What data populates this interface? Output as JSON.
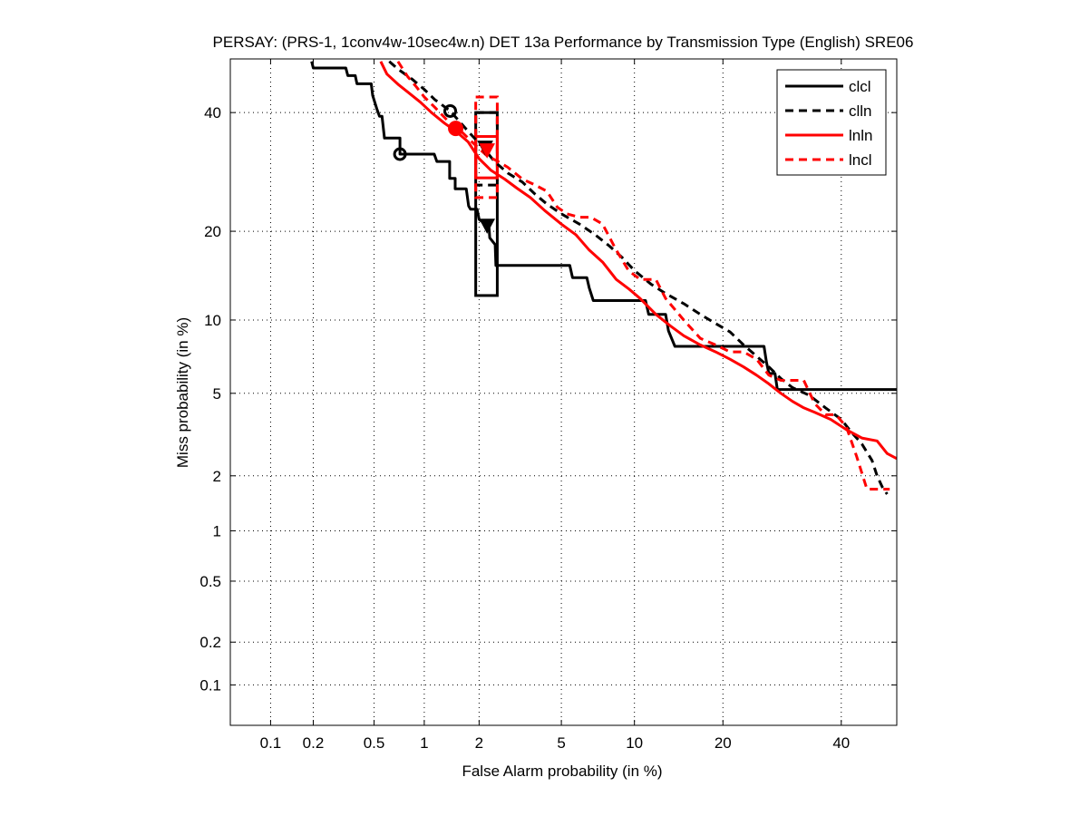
{
  "chart_data": {
    "type": "line",
    "title": "PERSAY: (PRS-1, 1conv4w-10sec4w.n) DET 13a Performance by Transmission Type (English) SRE06",
    "xlabel": "False Alarm probability (in %)",
    "ylabel": "Miss probability (in %)",
    "xscale": "probit",
    "yscale": "probit",
    "xlim": [
      0.05,
      50.9
    ],
    "ylim": [
      0.05,
      50.5
    ],
    "grid": true,
    "legend_position": "top-right",
    "xticks": [
      0.1,
      0.2,
      0.5,
      1,
      2,
      5,
      10,
      20,
      40
    ],
    "xtick_labels": [
      "0.1",
      "0.2",
      "0.5",
      "1",
      "2",
      "5",
      "10",
      "20",
      "40"
    ],
    "yticks": [
      0.1,
      0.2,
      0.5,
      1,
      2,
      5,
      10,
      20,
      40
    ],
    "ytick_labels": [
      "0.1",
      "0.2",
      "0.5",
      "1",
      "2",
      "5",
      "10",
      "20",
      "40"
    ],
    "series": [
      {
        "name": "clcl",
        "color": "#000000",
        "dash": "solid",
        "x": [
          0.195,
          0.2,
          0.33,
          0.34,
          0.38,
          0.39,
          0.48,
          0.49,
          0.52,
          0.54,
          0.56,
          0.58,
          0.72,
          0.72,
          1.14,
          1.18,
          1.39,
          1.39,
          1.49,
          1.49,
          1.71,
          1.76,
          1.8,
          1.95,
          2.0,
          2.25,
          2.27,
          2.42,
          2.44,
          5.45,
          5.6,
          6.45,
          6.6,
          6.86,
          11.0,
          11.3,
          13.0,
          13.3,
          14.0,
          26.2,
          26.6,
          27.0,
          28.0,
          28.4,
          50.9
        ],
        "y": [
          50,
          48.7,
          48.7,
          47.2,
          47.2,
          45.6,
          45.6,
          43.3,
          40.7,
          39.3,
          39.3,
          35.2,
          35.2,
          32.3,
          32.3,
          31.0,
          31.0,
          28.1,
          28.1,
          26.4,
          26.4,
          23.7,
          23.2,
          23.2,
          21.7,
          20.6,
          19.1,
          18.2,
          15.6,
          15.6,
          14.2,
          14.2,
          13.1,
          11.8,
          11.8,
          10.5,
          10.5,
          9.1,
          7.9,
          7.9,
          6.8,
          6.1,
          6.1,
          5.2,
          5.2
        ]
      },
      {
        "name": "clln",
        "color": "#000000",
        "dash": "dashed",
        "x": [
          0.62,
          0.7,
          0.85,
          1.0,
          1.15,
          1.4,
          1.6,
          1.8,
          2.1,
          2.4,
          2.8,
          3.3,
          3.8,
          4.3,
          5.0,
          6.0,
          7.0,
          8.0,
          9.0,
          10.0,
          11.5,
          13.0,
          15.0,
          17.0,
          19.0,
          21.0,
          23.0,
          25.0,
          27.0,
          29.0,
          31.0,
          34.0,
          37.0,
          40.0,
          42.0,
          44.0,
          46.0,
          47.0,
          48.0,
          49.0
        ],
        "y": [
          50,
          48.5,
          46.5,
          44.5,
          42.5,
          40.3,
          38.0,
          36.0,
          33.5,
          31.0,
          29.0,
          27.5,
          25.5,
          24.0,
          22.5,
          21.0,
          19.5,
          18.0,
          16.5,
          15.0,
          13.5,
          12.5,
          11.5,
          10.5,
          9.7,
          9.0,
          8.0,
          7.2,
          6.5,
          5.8,
          5.3,
          4.9,
          4.3,
          3.8,
          3.3,
          2.9,
          2.4,
          2.0,
          1.75,
          1.6
        ]
      },
      {
        "name": "lnln",
        "color": "#ff0000",
        "dash": "solid",
        "x": [
          0.55,
          0.6,
          0.7,
          0.8,
          0.95,
          1.1,
          1.3,
          1.5,
          1.75,
          2.0,
          2.3,
          2.7,
          3.1,
          3.6,
          4.2,
          5.0,
          5.8,
          6.6,
          7.5,
          8.5,
          9.5,
          10.5,
          12.0,
          13.5,
          15.0,
          17.0,
          19.0,
          21.0,
          23.0,
          25.0,
          27.0,
          29.0,
          31.0,
          33.0,
          35.0,
          38.0,
          41.0,
          44.0,
          47.0,
          49.0,
          50.9
        ],
        "y": [
          50,
          47.5,
          45.5,
          44.0,
          42.0,
          40.0,
          38.0,
          36.5,
          34.5,
          31.5,
          29.5,
          28.0,
          26.5,
          25.0,
          23.0,
          21.0,
          19.5,
          17.5,
          16.0,
          14.0,
          13.0,
          12.0,
          10.5,
          9.5,
          8.7,
          8.0,
          7.5,
          7.0,
          6.5,
          6.0,
          5.5,
          5.0,
          4.6,
          4.3,
          4.1,
          3.8,
          3.4,
          3.1,
          3.0,
          2.6,
          2.45
        ]
      },
      {
        "name": "lncl",
        "color": "#ff0000",
        "dash": "dashed",
        "x": [
          0.7,
          0.8,
          0.9,
          1.0,
          1.15,
          1.35,
          1.6,
          1.9,
          2.2,
          2.5,
          2.8,
          3.3,
          3.8,
          4.3,
          4.8,
          5.3,
          6.0,
          6.7,
          7.5,
          8.5,
          9.5,
          10.5,
          12.0,
          13.0,
          15.0,
          17.0,
          19.0,
          21.0,
          23.0,
          25.0,
          27.0,
          29.0,
          31.0,
          33.0,
          35.0,
          37.0,
          39.0,
          41.0,
          43.0,
          45.0,
          49.5
        ],
        "y": [
          50,
          47.0,
          45.0,
          43.0,
          41.0,
          38.5,
          36.5,
          34.0,
          32.0,
          31.0,
          30.0,
          28.0,
          27.0,
          26.0,
          23.5,
          22.5,
          22.0,
          22.0,
          21.0,
          17.5,
          15.0,
          14.0,
          14.0,
          12.0,
          10.0,
          8.5,
          8.0,
          7.5,
          7.5,
          7.0,
          6.0,
          5.7,
          5.7,
          5.7,
          4.5,
          4.0,
          4.0,
          3.5,
          2.5,
          1.7,
          1.7
        ]
      }
    ],
    "markers": [
      {
        "series": "clcl",
        "shape": "circle-open",
        "x": 0.72,
        "y": 32.3
      },
      {
        "series": "clcl",
        "shape": "triangle-down",
        "x": 2.2,
        "y": 20.8
      },
      {
        "series": "clln",
        "shape": "circle-open",
        "x": 1.4,
        "y": 40.3
      },
      {
        "series": "clln",
        "shape": "triangle-down",
        "x": 2.15,
        "y": 33.5
      },
      {
        "series": "lnln",
        "shape": "circle-filled",
        "x": 1.5,
        "y": 37.0
      },
      {
        "series": "lnln",
        "shape": "triangle-down",
        "x": 2.2,
        "y": 33.0
      }
    ],
    "confidence_boxes": [
      {
        "series": "clcl",
        "x": [
          1.92,
          2.48
        ],
        "y": [
          12.3,
          40.0
        ]
      },
      {
        "series": "clln",
        "x": [
          1.92,
          2.48
        ],
        "y": [
          27.0,
          40.0
        ]
      },
      {
        "series": "lnln",
        "x": [
          1.92,
          2.48
        ],
        "y": [
          28.2,
          35.5
        ]
      },
      {
        "series": "lncl",
        "x": [
          1.92,
          2.48
        ],
        "y": [
          25.0,
          43.0
        ]
      }
    ]
  }
}
